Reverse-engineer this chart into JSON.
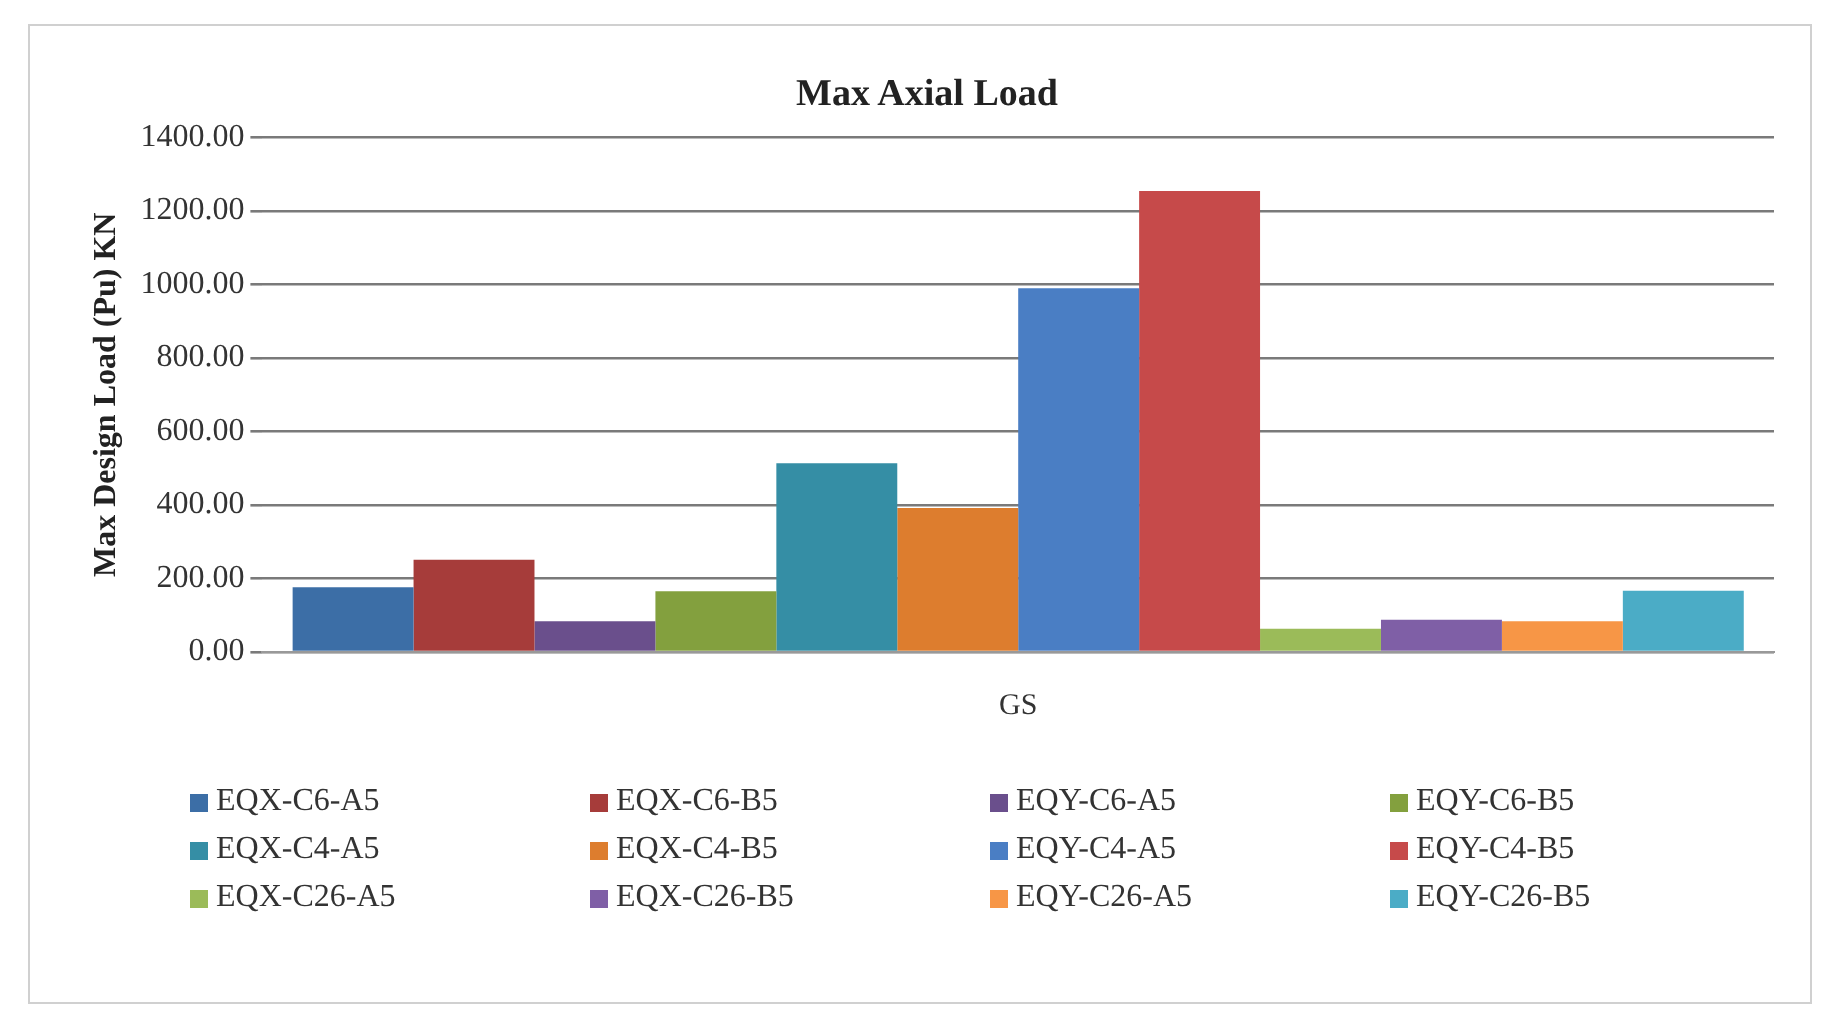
{
  "chart_data": {
    "type": "bar",
    "title": "Max Axial Load",
    "ylabel": "Max Design Load (Pu) KN",
    "categories": [
      "GS"
    ],
    "series": [
      {
        "name": "EQX-C6-A5",
        "color": "#3c6ea6",
        "values": [
          176
        ]
      },
      {
        "name": "EQX-C6-B5",
        "color": "#a63c3a",
        "values": [
          251
        ]
      },
      {
        "name": "EQY-C6-A5",
        "color": "#6a4f8c",
        "values": [
          84
        ]
      },
      {
        "name": "EQY-C6-B5",
        "color": "#83a03e",
        "values": [
          165
        ]
      },
      {
        "name": "EQX-C4-A5",
        "color": "#358ea5",
        "values": [
          514
        ]
      },
      {
        "name": "EQX-C4-B5",
        "color": "#dd7d2e",
        "values": [
          392
        ]
      },
      {
        "name": "EQY-C4-A5",
        "color": "#4a7ec4",
        "values": [
          990
        ]
      },
      {
        "name": "EQY-C4-B5",
        "color": "#c64a4a",
        "values": [
          1255
        ]
      },
      {
        "name": "EQX-C26-A5",
        "color": "#9bbb59",
        "values": [
          63
        ]
      },
      {
        "name": "EQX-C26-B5",
        "color": "#7f5fa6",
        "values": [
          88
        ]
      },
      {
        "name": "EQY-C26-A5",
        "color": "#f79646",
        "values": [
          84
        ]
      },
      {
        "name": "EQY-C26-B5",
        "color": "#4bacc6",
        "values": [
          167
        ]
      }
    ],
    "ylim": [
      0,
      1400
    ],
    "yticks": [
      {
        "value": 0,
        "label": "0.00"
      },
      {
        "value": 200,
        "label": "200.00"
      },
      {
        "value": 400,
        "label": "400.00"
      },
      {
        "value": 600,
        "label": "600.00"
      },
      {
        "value": 800,
        "label": "800.00"
      },
      {
        "value": 1000,
        "label": "1000.00"
      },
      {
        "value": 1200,
        "label": "1200.00"
      },
      {
        "value": 1400,
        "label": "1400.00"
      }
    ],
    "grid": "y",
    "legend": "bottom"
  }
}
